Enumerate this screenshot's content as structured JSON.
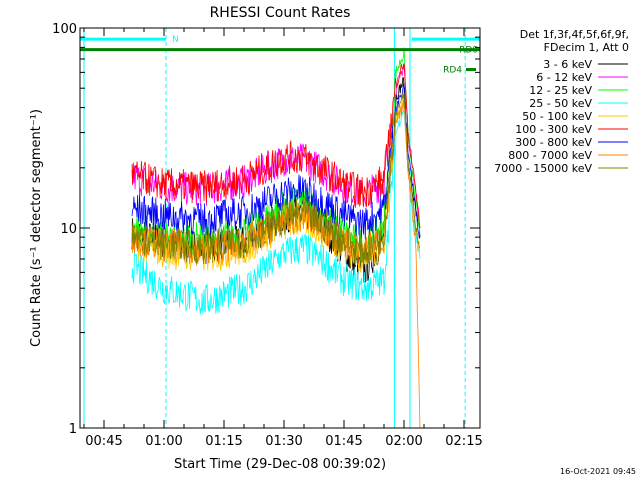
{
  "chart_data": {
    "type": "line",
    "title": "RHESSI Count Rates",
    "xlabel": "Start Time (29-Dec-08 00:39:02)",
    "ylabel": "Count Rate (s⁻¹ detector segment⁻¹)",
    "x_ticks": [
      "00:45",
      "01:00",
      "01:15",
      "01:30",
      "01:45",
      "02:00",
      "02:15"
    ],
    "x_tick_minutes": [
      45,
      60,
      75,
      90,
      105,
      120,
      135
    ],
    "xlim_minutes": [
      39.0,
      139.0
    ],
    "y_scale": "log",
    "ylim": [
      1,
      100
    ],
    "y_ticks": [
      "1",
      "10",
      "100"
    ],
    "y_tick_values": [
      1,
      10,
      100
    ],
    "legend_placement": "right",
    "legend_header": [
      "Det 1f,3f,4f,5f,6f,9f,",
      "FDecim 1, Att 0"
    ],
    "series": [
      {
        "name": "3 - 6 keV",
        "color": "#000000",
        "x": [
          52,
          60,
          70,
          80,
          90,
          95,
          100,
          105,
          110,
          115,
          118,
          120,
          121,
          123,
          124
        ],
        "y": [
          9.5,
          8.5,
          8.0,
          8.5,
          11.5,
          12.0,
          10.0,
          7.5,
          6.0,
          9.0,
          45,
          55,
          20,
          12,
          9
        ]
      },
      {
        "name": "6 - 12 keV",
        "color": "#ff00ff",
        "x": [
          52,
          60,
          70,
          80,
          90,
          95,
          100,
          105,
          110,
          115,
          118,
          120,
          121,
          123,
          124
        ],
        "y": [
          18,
          16,
          15.5,
          17,
          22,
          22,
          19,
          16,
          14.5,
          17,
          50,
          65,
          30,
          15,
          10
        ]
      },
      {
        "name": "12 - 25 keV",
        "color": "#00ff00",
        "x": [
          52,
          60,
          70,
          80,
          90,
          95,
          100,
          105,
          110,
          115,
          118,
          120,
          121,
          123,
          124
        ],
        "y": [
          10.0,
          9.2,
          8.8,
          9.5,
          13.0,
          13.5,
          11.5,
          9.5,
          8.0,
          10.5,
          60,
          75,
          30,
          13,
          9.5
        ]
      },
      {
        "name": "25 - 50 keV",
        "color": "#00ffff",
        "x": [
          52,
          60,
          70,
          80,
          90,
          95,
          100,
          105,
          110,
          115,
          118,
          120,
          121,
          123,
          124
        ],
        "y": [
          6.5,
          5.0,
          4.3,
          5.0,
          7.5,
          8.0,
          6.8,
          5.5,
          5.0,
          5.5,
          30,
          40,
          20,
          9,
          7
        ]
      },
      {
        "name": "50 - 100 keV",
        "color": "#ffc800",
        "x": [
          52,
          60,
          70,
          80,
          90,
          95,
          100,
          105,
          110,
          115,
          118,
          120,
          121,
          123,
          124
        ],
        "y": [
          8.5,
          7.6,
          7.2,
          7.8,
          10.5,
          11.0,
          9.5,
          8.0,
          7.0,
          8.5,
          35,
          45,
          20,
          10,
          7.5
        ]
      },
      {
        "name": "100 - 300 keV",
        "color": "#ff0000",
        "x": [
          52,
          60,
          70,
          80,
          90,
          95,
          100,
          105,
          110,
          115,
          118,
          120,
          121,
          123,
          124
        ],
        "y": [
          18.5,
          16.5,
          16.0,
          17.5,
          22.5,
          22.5,
          19.5,
          16.5,
          15.0,
          17.5,
          52,
          68,
          30,
          15,
          10
        ]
      },
      {
        "name": "300 - 800 keV",
        "color": "#0000ff",
        "x": [
          52,
          60,
          70,
          80,
          90,
          95,
          100,
          105,
          110,
          115,
          118,
          120,
          121,
          123,
          124
        ],
        "y": [
          12.5,
          11.5,
          11.0,
          12.0,
          15.0,
          15.5,
          13.5,
          11.5,
          10.5,
          12.5,
          40,
          50,
          25,
          12,
          9
        ]
      },
      {
        "name": "800 - 7000 keV",
        "color": "#ff8000",
        "x": [
          52,
          60,
          70,
          80,
          90,
          95,
          100,
          105,
          110,
          115,
          118,
          120,
          121,
          123,
          124
        ],
        "y": [
          9.0,
          8.2,
          7.8,
          8.4,
          11.0,
          11.5,
          10.0,
          8.5,
          7.5,
          9.0,
          33,
          42,
          20,
          8,
          1
        ]
      },
      {
        "name": "7000 - 15000 keV",
        "color": "#808000",
        "x": [
          52,
          60,
          70,
          80,
          90,
          95,
          100,
          105,
          110,
          115,
          118,
          120,
          121,
          123,
          124
        ],
        "y": [
          9.2,
          8.3,
          8.0,
          8.6,
          11.2,
          11.8,
          10.2,
          8.7,
          7.6,
          9.2,
          38,
          48,
          22,
          10,
          8
        ]
      }
    ],
    "flags": [
      {
        "label": "N",
        "color": "#00ffff",
        "y": 88,
        "segments": [
          [
            39,
            60.5
          ],
          [
            122,
            139
          ]
        ]
      },
      {
        "label": "RD0",
        "color": "#008000",
        "y": 78,
        "segments": [
          [
            39,
            139
          ]
        ]
      },
      {
        "label": "RD4",
        "color": "#008000",
        "y": 62,
        "segments": [
          [
            135.5,
            138
          ]
        ]
      }
    ],
    "interval_markers": {
      "dashed_x": [
        60.5,
        135.3
      ],
      "solid_x": [
        40.0,
        117.6,
        121.5
      ],
      "color": "#00ffff"
    },
    "footer_date": "16-Oct-2021 09:45"
  }
}
